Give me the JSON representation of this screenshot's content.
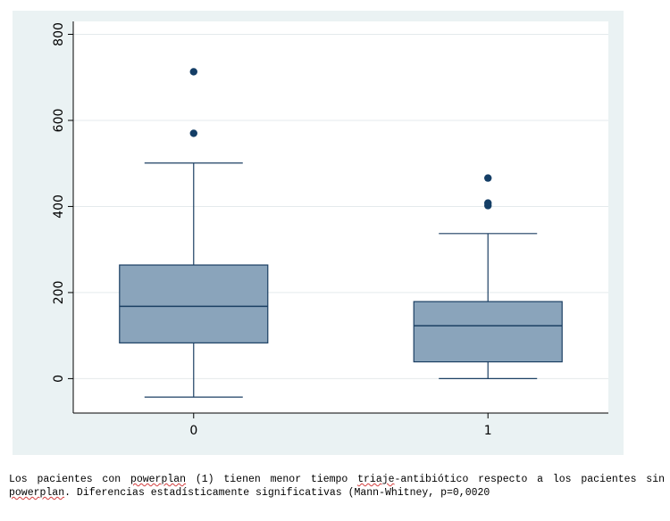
{
  "chart_data": {
    "type": "box",
    "title": "",
    "xlabel": "",
    "ylabel": "",
    "ylim": [
      -80,
      830
    ],
    "y_ticks": [
      0,
      200,
      400,
      600,
      800
    ],
    "categories": [
      "0",
      "1"
    ],
    "series": [
      {
        "category": "0",
        "whisker_low": -43,
        "q1": 83,
        "median": 168,
        "q3": 264,
        "whisker_high": 501,
        "outliers": [
          570,
          713
        ]
      },
      {
        "category": "1",
        "whisker_low": 0,
        "q1": 39,
        "median": 123,
        "q3": 179,
        "whisker_high": 337,
        "outliers": [
          402,
          408,
          466
        ]
      }
    ],
    "grid": true,
    "colors": {
      "box_fill": "#8aa4bb",
      "box_stroke": "#1b3f63",
      "outlier": "#143e66",
      "plot_bg": "#eaf2f3",
      "grid": "#ffffff"
    }
  },
  "caption": {
    "parts": [
      {
        "t": "Los pacientes con ",
        "sq": false
      },
      {
        "t": "powerplan",
        "sq": true
      },
      {
        "t": " (1) tienen menor tiempo ",
        "sq": false
      },
      {
        "t": "triaje",
        "sq": true
      },
      {
        "t": "-antibiótico respecto a los pacientes sin ",
        "sq": false
      },
      {
        "t": "powerplan",
        "sq": true
      },
      {
        "t": ". Diferencias estadísticamente significativas (Mann-Whitney, p=0,0020",
        "sq": false
      }
    ]
  }
}
